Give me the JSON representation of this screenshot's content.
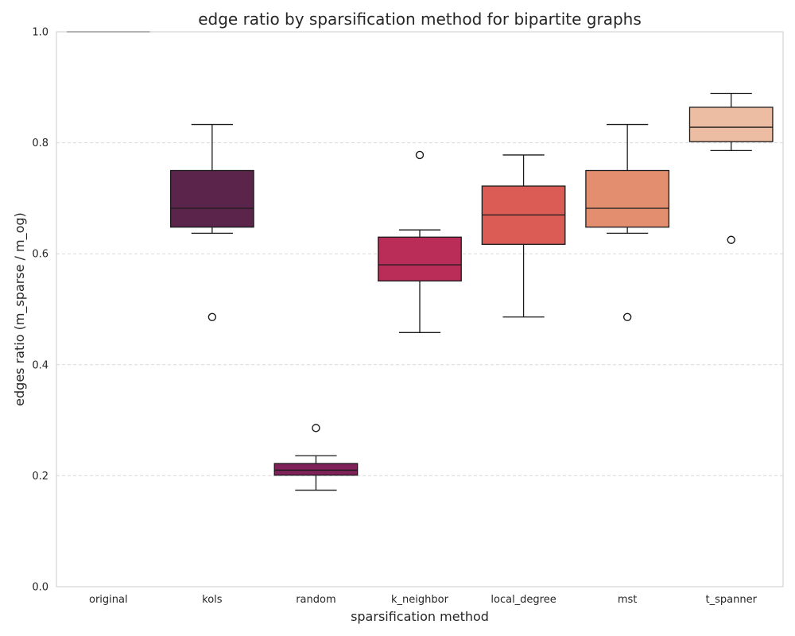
{
  "chart_data": {
    "type": "box",
    "title": "edge ratio by sparsification method for bipartite graphs",
    "xlabel": "sparsification method",
    "ylabel": "edges ratio (m_sparse / m_og)",
    "ylim": [
      0,
      1
    ],
    "yticks": [
      "0.0",
      "0.2",
      "0.4",
      "0.6",
      "0.8",
      "1.0"
    ],
    "grid": "y-dashed",
    "categories": [
      "original",
      "kols",
      "random",
      "k_neighbor",
      "local_degree",
      "mst",
      "t_spanner"
    ],
    "boxes": [
      {
        "category": "original",
        "min": 1.0,
        "q1": 1.0,
        "median": 1.0,
        "q3": 1.0,
        "max": 1.0,
        "outliers": [],
        "color": "#3b1a3d"
      },
      {
        "category": "kols",
        "min": 0.637,
        "q1": 0.648,
        "median": 0.682,
        "q3": 0.75,
        "max": 0.833,
        "outliers": [
          0.486
        ],
        "color": "#5b254b"
      },
      {
        "category": "random",
        "min": 0.174,
        "q1": 0.201,
        "median": 0.21,
        "q3": 0.222,
        "max": 0.236,
        "outliers": [
          0.286
        ],
        "color": "#7e2259"
      },
      {
        "category": "k_neighbor",
        "min": 0.458,
        "q1": 0.551,
        "median": 0.58,
        "q3": 0.63,
        "max": 0.643,
        "outliers": [
          0.778
        ],
        "color": "#b92d58"
      },
      {
        "category": "local_degree",
        "min": 0.486,
        "q1": 0.617,
        "median": 0.67,
        "q3": 0.722,
        "max": 0.778,
        "outliers": [],
        "color": "#da5c54"
      },
      {
        "category": "mst",
        "min": 0.637,
        "q1": 0.648,
        "median": 0.682,
        "q3": 0.75,
        "max": 0.833,
        "outliers": [
          0.486
        ],
        "color": "#e38f6f"
      },
      {
        "category": "t_spanner",
        "min": 0.786,
        "q1": 0.802,
        "median": 0.828,
        "q3": 0.864,
        "max": 0.889,
        "outliers": [
          0.625
        ],
        "color": "#ecbda2"
      }
    ]
  }
}
